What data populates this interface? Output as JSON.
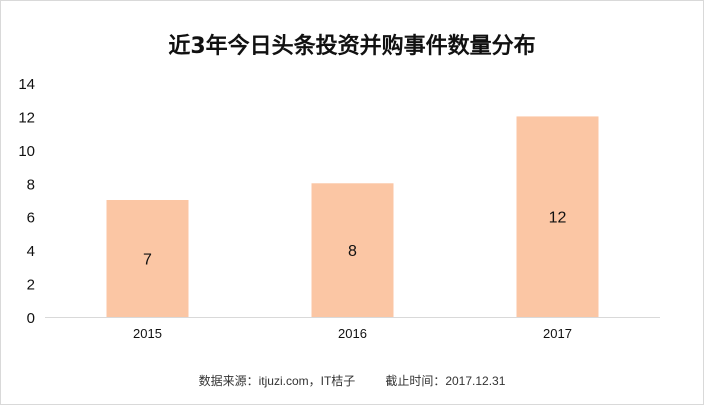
{
  "chart_data": {
    "type": "bar",
    "title": "近3年今日头条投资并购事件数量分布",
    "categories": [
      "2015",
      "2016",
      "2017"
    ],
    "values": [
      7,
      8,
      12
    ],
    "data_labels": [
      "7",
      "8",
      "12"
    ],
    "xlabel": "",
    "ylabel": "",
    "ylim": [
      0,
      14
    ],
    "yticks": [
      "0",
      "2",
      "4",
      "6",
      "8",
      "10",
      "12",
      "14"
    ],
    "grid": false,
    "legend": "none",
    "bar_color": "#fbc6a4"
  },
  "footer": {
    "source": "数据来源：itjuzi.com，IT桔子",
    "cutoff": "截止时间：2017.12.31"
  }
}
